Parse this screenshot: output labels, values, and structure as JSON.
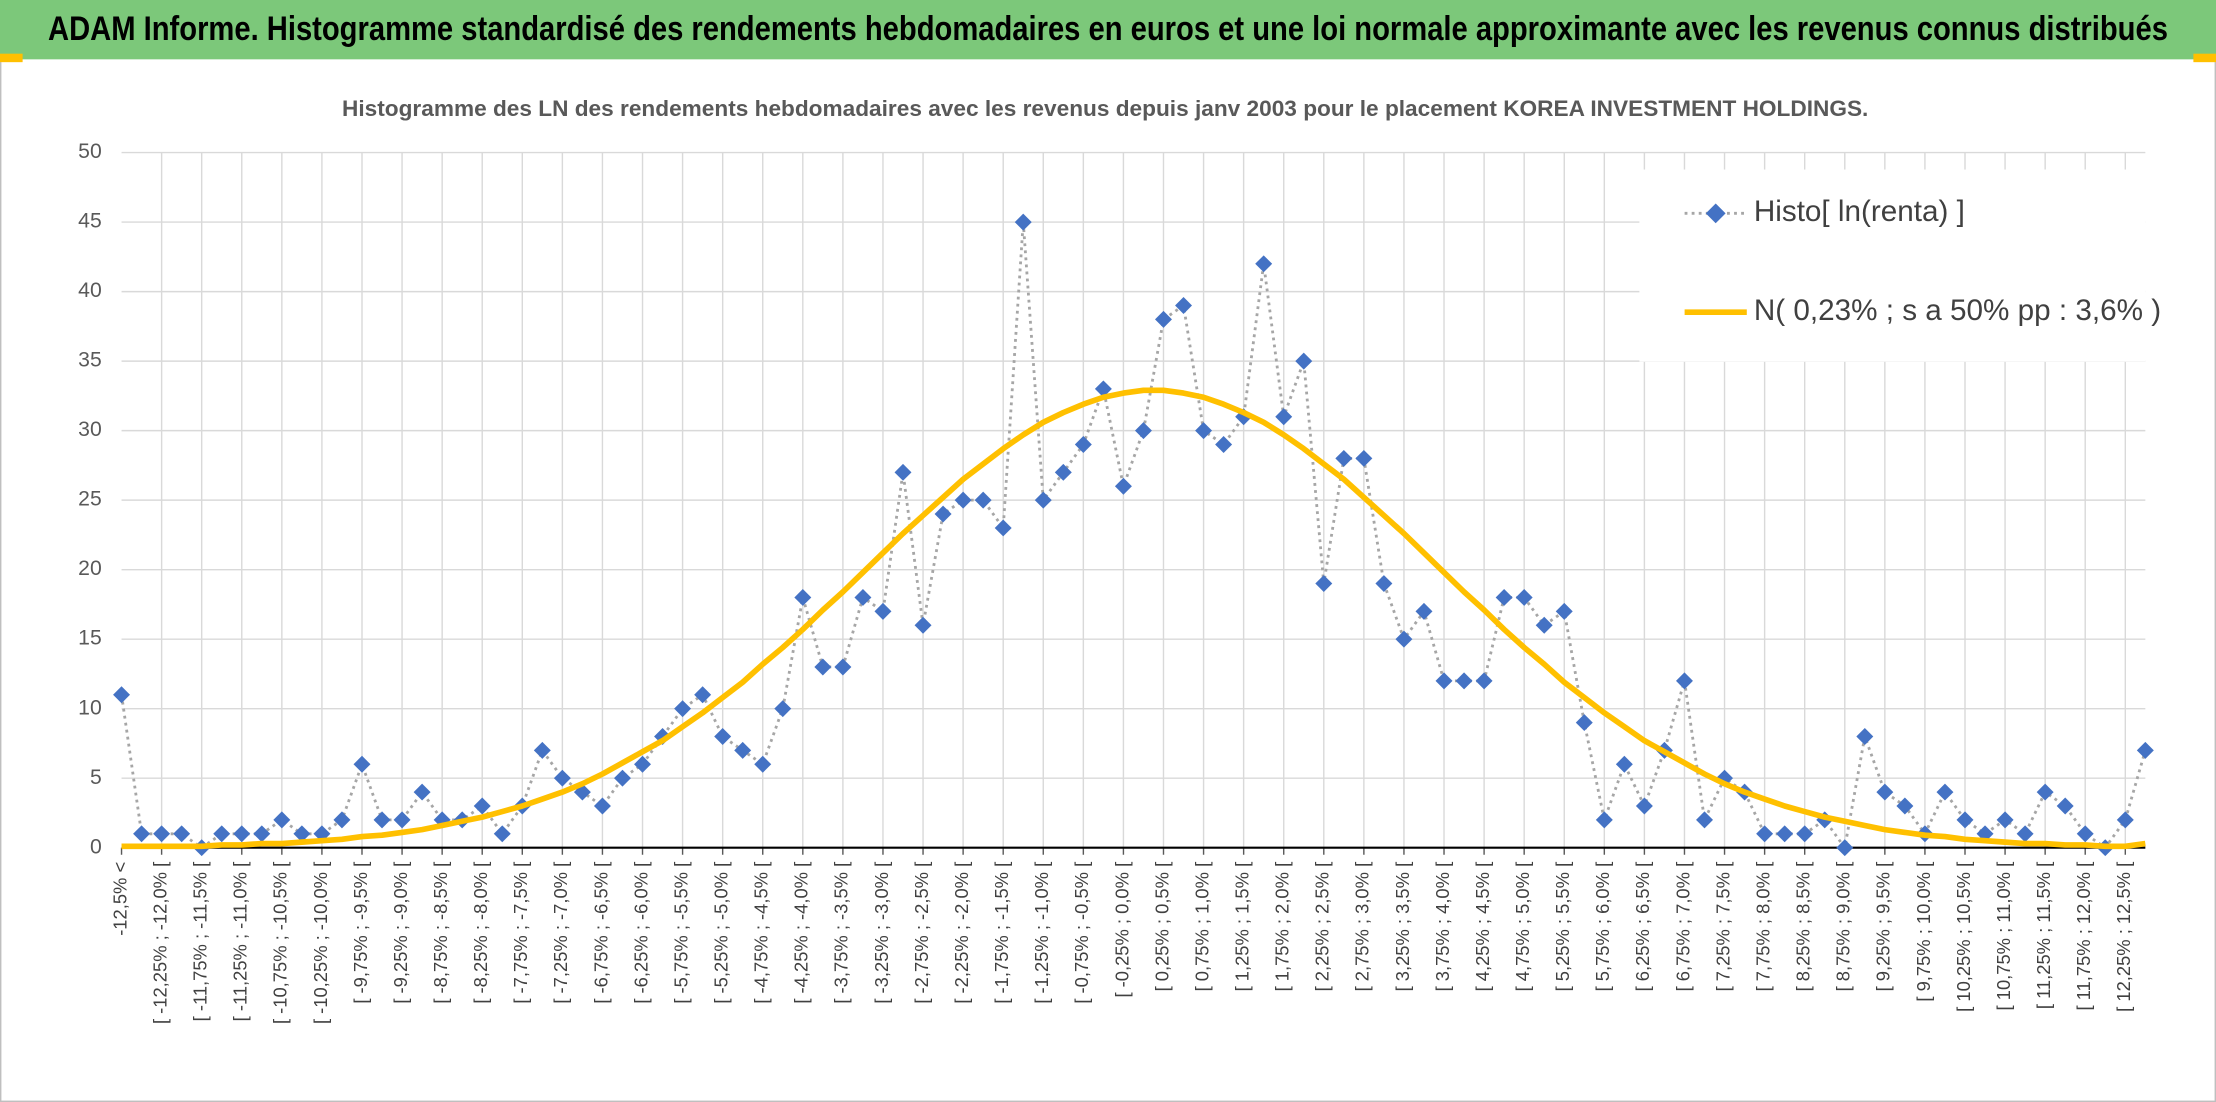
{
  "header": {
    "title": "ADAM Informe. Histogramme standardisé des rendements hebdomadaires en euros et une loi normale approximante avec les revenus connus distribués"
  },
  "chart_data": {
    "type": "line",
    "title": "Histogramme des LN des rendements hebdomadaires avec les revenus depuis janv 2003 pour le placement KOREA INVESTMENT  HOLDINGS.",
    "categories": [
      "-12,5% <",
      null,
      "[ -12,25% ; -12,0% [",
      null,
      "[ -11,75% ; -11,5% [",
      null,
      "[ -11,25% ; -11,0% [",
      null,
      "[ -10,75% ; -10,5% [",
      null,
      "[ -10,25% ; -10,0% [",
      null,
      "[ -9,75% ; -9,5% [",
      null,
      "[ -9,25% ; -9,0% [",
      null,
      "[ -8,75% ; -8,5% [",
      null,
      "[ -8,25% ; -8,0% [",
      null,
      "[ -7,75% ; -7,5% [",
      null,
      "[ -7,25% ; -7,0% [",
      null,
      "[ -6,75% ; -6,5% [",
      null,
      "[ -6,25% ; -6,0% [",
      null,
      "[ -5,75% ; -5,5% [",
      null,
      "[ -5,25% ; -5,0% [",
      null,
      "[ -4,75% ; -4,5% [",
      null,
      "[ -4,25% ; -4,0% [",
      null,
      "[ -3,75% ; -3,5% [",
      null,
      "[ -3,25% ; -3,0% [",
      null,
      "[ -2,75% ; -2,5% [",
      null,
      "[ -2,25% ; -2,0% [",
      null,
      "[ -1,75% ; -1,5% [",
      null,
      "[ -1,25% ; -1,0% [",
      null,
      "[ -0,75% ; -0,5% [",
      null,
      "[ -0,25% ; 0,0% [",
      null,
      "[ 0,25% ; 0,5% [",
      null,
      "[ 0,75% ; 1,0% [",
      null,
      "[ 1,25% ; 1,5% [",
      null,
      "[ 1,75% ; 2,0% [",
      null,
      "[ 2,25% ; 2,5% [",
      null,
      "[ 2,75% ; 3,0% [",
      null,
      "[ 3,25% ; 3,5% [",
      null,
      "[ 3,75% ; 4,0% [",
      null,
      "[ 4,25% ; 4,5% [",
      null,
      "[ 4,75% ; 5,0% [",
      null,
      "[ 5,25% ; 5,5% [",
      null,
      "[ 5,75% ; 6,0% [",
      null,
      "[ 6,25% ; 6,5% [",
      null,
      "[ 6,75% ; 7,0% [",
      null,
      "[ 7,25% ; 7,5% [",
      null,
      "[ 7,75% ; 8,0% [",
      null,
      "[ 8,25% ; 8,5% [",
      null,
      "[ 8,75% ; 9,0% [",
      null,
      "[ 9,25% ; 9,5% [",
      null,
      "[ 9,75% ; 10,0% [",
      null,
      "[ 10,25% ; 10,5% [",
      null,
      "[ 10,75% ; 11,0% [",
      null,
      "[ 11,25% ; 11,5% [",
      null,
      "[ 11,75% ; 12,0% [",
      null,
      "[ 12,25% ; 12,5% [",
      null
    ],
    "series": [
      {
        "name": "Histo[ ln(renta) ]",
        "color": "#4472c4",
        "line_color": "#a6a6a6",
        "line_style": "dotted",
        "marker": "diamond",
        "values": [
          11,
          1,
          1,
          1,
          0,
          1,
          1,
          1,
          2,
          1,
          1,
          2,
          6,
          2,
          2,
          4,
          2,
          2,
          3,
          1,
          3,
          7,
          5,
          4,
          3,
          5,
          6,
          8,
          10,
          11,
          8,
          7,
          6,
          10,
          18,
          13,
          13,
          18,
          17,
          27,
          16,
          24,
          25,
          25,
          23,
          45,
          25,
          27,
          29,
          33,
          26,
          30,
          38,
          39,
          30,
          29,
          31,
          42,
          31,
          35,
          19,
          28,
          28,
          19,
          15,
          17,
          12,
          12,
          12,
          18,
          18,
          16,
          17,
          9,
          2,
          6,
          3,
          7,
          12,
          2,
          5,
          4,
          1,
          1,
          1,
          2,
          0,
          8,
          4,
          3,
          1,
          4,
          2,
          1,
          2,
          1,
          4,
          3,
          1,
          0,
          2,
          7
        ]
      },
      {
        "name": "N( 0,23% ; s a 50% pp : 3,6% )",
        "color": "#ffc000",
        "line_color": "#ffc000",
        "line_style": "solid",
        "marker": "none",
        "values": [
          0.1,
          0.1,
          0.1,
          0.1,
          0.1,
          0.2,
          0.2,
          0.3,
          0.3,
          0.4,
          0.5,
          0.6,
          0.8,
          0.9,
          1.1,
          1.3,
          1.6,
          1.9,
          2.2,
          2.6,
          3.0,
          3.5,
          4.0,
          4.6,
          5.3,
          6.1,
          6.9,
          7.7,
          8.7,
          9.7,
          10.8,
          11.9,
          13.2,
          14.4,
          15.7,
          17.1,
          18.4,
          19.8,
          21.2,
          22.6,
          23.9,
          25.2,
          26.5,
          27.6,
          28.7,
          29.7,
          30.6,
          31.3,
          31.9,
          32.4,
          32.7,
          32.9,
          32.9,
          32.7,
          32.4,
          31.9,
          31.3,
          30.6,
          29.7,
          28.7,
          27.6,
          26.5,
          25.2,
          23.9,
          22.6,
          21.2,
          19.8,
          18.4,
          17.1,
          15.7,
          14.4,
          13.2,
          11.9,
          10.8,
          9.7,
          8.7,
          7.7,
          6.9,
          6.1,
          5.3,
          4.6,
          4.0,
          3.5,
          3.0,
          2.6,
          2.2,
          1.9,
          1.6,
          1.3,
          1.1,
          0.9,
          0.8,
          0.6,
          0.5,
          0.4,
          0.3,
          0.3,
          0.2,
          0.2,
          0.1,
          0.1,
          0.3
        ]
      }
    ],
    "ylim": [
      0,
      50
    ],
    "yticks": [
      0,
      5,
      10,
      15,
      20,
      25,
      30,
      35,
      40,
      45,
      50
    ],
    "grid": true,
    "legend": "top-right"
  }
}
